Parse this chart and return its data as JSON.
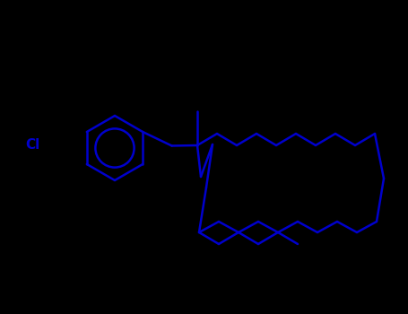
{
  "bg_color": "#000000",
  "line_color": "#0000cc",
  "line_width": 1.8,
  "figsize": [
    4.55,
    3.5
  ],
  "dpi": 100,
  "cl_label": "Cl",
  "cl_fontsize": 11
}
